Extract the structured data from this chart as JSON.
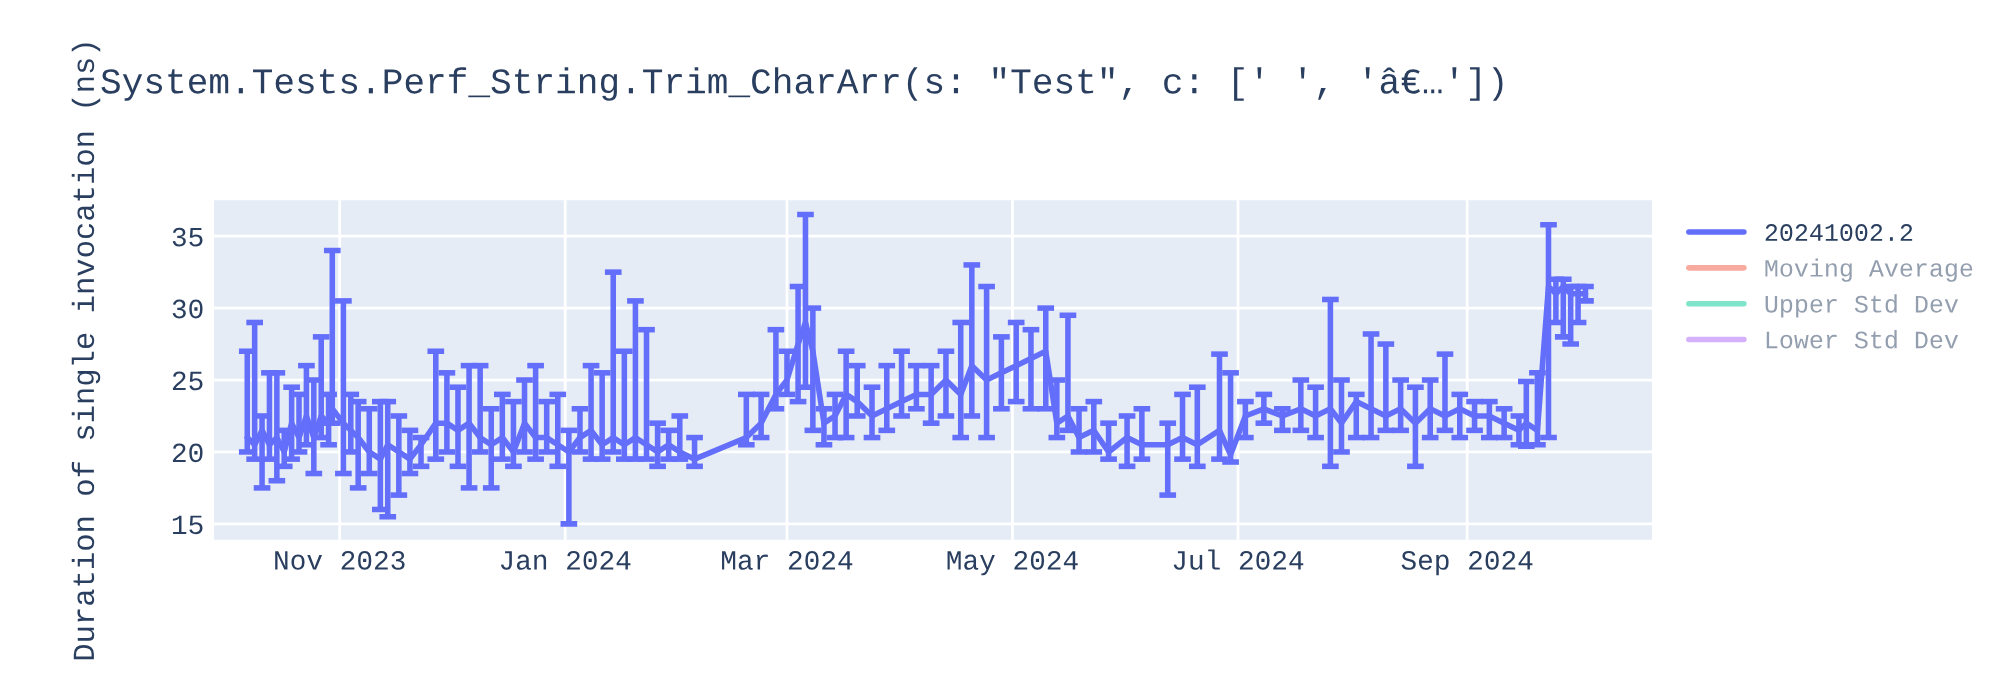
{
  "chart_data": {
    "type": "line",
    "title": "System.Tests.Perf_String.Trim_CharArr(s: \"Test\", c: [' ', 'â€…'])",
    "ylabel": "Duration of single invocation (ns)",
    "xlim": [
      "2023-09-28",
      "2024-10-21"
    ],
    "xticks": [
      {
        "value": "2023-11-01",
        "label": "Nov 2023"
      },
      {
        "value": "2024-01-01",
        "label": "Jan 2024"
      },
      {
        "value": "2024-03-01",
        "label": "Mar 2024"
      },
      {
        "value": "2024-05-01",
        "label": "May 2024"
      },
      {
        "value": "2024-07-01",
        "label": "Jul 2024"
      },
      {
        "value": "2024-09-01",
        "label": "Sep 2024"
      }
    ],
    "ylim": [
      13.9,
      37.5
    ],
    "yticks": [
      15,
      20,
      25,
      30,
      35
    ],
    "grid": true,
    "legend": "right",
    "marker": "none",
    "line_style": "solid",
    "x": [
      "2023-10-07",
      "2023-10-09",
      "2023-10-11",
      "2023-10-13",
      "2023-10-15",
      "2023-10-17",
      "2023-10-19",
      "2023-10-21",
      "2023-10-23",
      "2023-10-25",
      "2023-10-27",
      "2023-10-29",
      "2023-10-30",
      "2023-11-02",
      "2023-11-04",
      "2023-11-06",
      "2023-11-09",
      "2023-11-12",
      "2023-11-14",
      "2023-11-17",
      "2023-11-20",
      "2023-11-23",
      "2023-11-27",
      "2023-11-30",
      "2023-12-03",
      "2023-12-06",
      "2023-12-09",
      "2023-12-12",
      "2023-12-15",
      "2023-12-18",
      "2023-12-21",
      "2023-12-24",
      "2023-12-27",
      "2023-12-30",
      "2024-01-02",
      "2024-01-05",
      "2024-01-08",
      "2024-01-11",
      "2024-01-14",
      "2024-01-17",
      "2024-01-20",
      "2024-01-23",
      "2024-01-26",
      "2024-01-29",
      "2024-02-01",
      "2024-02-05",
      "2024-02-19",
      "2024-02-23",
      "2024-02-27",
      "2024-03-01",
      "2024-03-04",
      "2024-03-06",
      "2024-03-08",
      "2024-03-11",
      "2024-03-14",
      "2024-03-17",
      "2024-03-20",
      "2024-03-24",
      "2024-03-28",
      "2024-04-01",
      "2024-04-05",
      "2024-04-09",
      "2024-04-13",
      "2024-04-17",
      "2024-04-20",
      "2024-04-24",
      "2024-04-28",
      "2024-05-02",
      "2024-05-06",
      "2024-05-10",
      "2024-05-13",
      "2024-05-16",
      "2024-05-19",
      "2024-05-23",
      "2024-05-27",
      "2024-06-01",
      "2024-06-05",
      "2024-06-12",
      "2024-06-16",
      "2024-06-20",
      "2024-06-26",
      "2024-06-29",
      "2024-07-03",
      "2024-07-08",
      "2024-07-13",
      "2024-07-18",
      "2024-07-22",
      "2024-07-26",
      "2024-07-29",
      "2024-08-02",
      "2024-08-06",
      "2024-08-10",
      "2024-08-14",
      "2024-08-18",
      "2024-08-22",
      "2024-08-26",
      "2024-08-30",
      "2024-09-03",
      "2024-09-07",
      "2024-09-11",
      "2024-09-15",
      "2024-09-17",
      "2024-09-20",
      "2024-09-23",
      "2024-09-25",
      "2024-09-27",
      "2024-09-29",
      "2024-10-01",
      "2024-10-03"
    ],
    "series": [
      {
        "name": "20241002.2",
        "color": "#636efa",
        "values": [
          21,
          20.5,
          21.5,
          20.5,
          21,
          20,
          22,
          21,
          22.5,
          21,
          22.5,
          22,
          23,
          22,
          21.5,
          21,
          20,
          19.5,
          20.5,
          20,
          19.5,
          20.5,
          22,
          22,
          21.5,
          22,
          21,
          20.5,
          21,
          20,
          22,
          21,
          21,
          20.5,
          20,
          21,
          21.5,
          20.5,
          21,
          20.5,
          21,
          20.5,
          20,
          20.5,
          20,
          19.5,
          21,
          22,
          24,
          25,
          27.5,
          29,
          27,
          22,
          22.5,
          24,
          23.5,
          22.5,
          23,
          23.5,
          24,
          24,
          25,
          24,
          26,
          25,
          25.5,
          26,
          26.5,
          27,
          22,
          22.5,
          21,
          21.5,
          20,
          21,
          20.5,
          20.5,
          21,
          20.5,
          21.5,
          19.8,
          22.5,
          23,
          22.5,
          23,
          22.5,
          23,
          22,
          23.5,
          23,
          22.5,
          23,
          22,
          23,
          22.5,
          23,
          22.5,
          22.5,
          22,
          21.5,
          22,
          21.5,
          31.5,
          31,
          31.5,
          31,
          31,
          31
        ],
        "errors": [
          [
            20,
            27
          ],
          [
            19.5,
            29
          ],
          [
            17.5,
            22.5
          ],
          [
            19.5,
            25.5
          ],
          [
            18,
            25.5
          ],
          [
            19,
            21.5
          ],
          [
            19.5,
            24.5
          ],
          [
            20,
            24
          ],
          [
            20.5,
            26
          ],
          [
            18.5,
            25
          ],
          [
            21,
            28
          ],
          [
            20.5,
            24
          ],
          [
            22,
            34
          ],
          [
            18.5,
            30.5
          ],
          [
            20,
            24
          ],
          [
            17.5,
            23.5
          ],
          [
            18.5,
            23
          ],
          [
            16,
            23.5
          ],
          [
            15.5,
            23.5
          ],
          [
            17,
            22.5
          ],
          [
            18.5,
            21.5
          ],
          [
            19,
            21
          ],
          [
            19.5,
            27
          ],
          [
            20,
            25.5
          ],
          [
            19,
            24.5
          ],
          [
            17.5,
            26
          ],
          [
            20,
            26
          ],
          [
            17.5,
            23
          ],
          [
            19.5,
            24
          ],
          [
            19,
            23.5
          ],
          [
            20,
            25
          ],
          [
            19.5,
            26
          ],
          [
            20,
            23.5
          ],
          [
            19,
            24
          ],
          [
            15,
            21.5
          ],
          [
            20,
            23
          ],
          [
            19.5,
            26
          ],
          [
            19.5,
            25.5
          ],
          [
            20,
            32.5
          ],
          [
            19.5,
            27
          ],
          [
            19.5,
            30.5
          ],
          [
            19.5,
            28.5
          ],
          [
            19,
            22
          ],
          [
            19.5,
            21.5
          ],
          [
            19.5,
            22.5
          ],
          [
            19,
            21
          ],
          [
            20.5,
            24
          ],
          [
            21,
            24
          ],
          [
            23,
            28.5
          ],
          [
            24,
            27
          ],
          [
            23.5,
            31.5
          ],
          [
            24.5,
            36.5
          ],
          [
            21.5,
            30
          ],
          [
            20.5,
            23
          ],
          [
            21,
            24
          ],
          [
            21,
            27
          ],
          [
            22.5,
            26
          ],
          [
            21,
            24.5
          ],
          [
            21.5,
            26
          ],
          [
            22.5,
            27
          ],
          [
            23,
            26
          ],
          [
            22,
            26
          ],
          [
            22.5,
            27
          ],
          [
            21,
            29
          ],
          [
            22.5,
            33
          ],
          [
            21,
            31.5
          ],
          [
            23,
            28
          ],
          [
            23.5,
            29
          ],
          [
            23,
            28.5
          ],
          [
            23,
            30
          ],
          [
            21,
            25
          ],
          [
            21.5,
            29.5
          ],
          [
            20,
            23
          ],
          [
            20,
            23.5
          ],
          [
            19.5,
            22
          ],
          [
            19,
            22.5
          ],
          [
            19.5,
            23
          ],
          [
            17,
            22
          ],
          [
            19.5,
            24
          ],
          [
            19,
            24.5
          ],
          [
            19.5,
            26.8
          ],
          [
            19.3,
            25.5
          ],
          [
            21,
            23.5
          ],
          [
            22,
            24
          ],
          [
            21.5,
            23
          ],
          [
            21.5,
            25
          ],
          [
            21,
            24.5
          ],
          [
            19,
            30.6
          ],
          [
            20,
            25
          ],
          [
            21,
            24
          ],
          [
            21,
            28.2
          ],
          [
            21.5,
            27.5
          ],
          [
            21.5,
            25
          ],
          [
            19,
            24.5
          ],
          [
            21,
            25
          ],
          [
            21.5,
            26.8
          ],
          [
            21,
            24
          ],
          [
            21.5,
            23.5
          ],
          [
            21,
            23.5
          ],
          [
            21,
            23
          ],
          [
            20.5,
            22.5
          ],
          [
            20.4,
            24.9
          ],
          [
            20.5,
            25.5
          ],
          [
            21,
            35.8
          ],
          [
            29,
            32
          ],
          [
            28,
            32
          ],
          [
            27.5,
            31.5
          ],
          [
            29,
            31.5
          ],
          [
            30.5,
            31.5
          ]
        ]
      },
      {
        "name": "Moving Average",
        "color": "#ef553b",
        "values": [
          null,
          null,
          null,
          null,
          null,
          null,
          null,
          null,
          null,
          null,
          null,
          null,
          null,
          null,
          null,
          null,
          null,
          null,
          null,
          null,
          null,
          null,
          null,
          null,
          null,
          null,
          null,
          null,
          null,
          null,
          null,
          null,
          null,
          null,
          null,
          null,
          null,
          null,
          null,
          null,
          null,
          null,
          null,
          null,
          null,
          null,
          null,
          null,
          null,
          null,
          null,
          null,
          null,
          null,
          null,
          null,
          null,
          null,
          null,
          null,
          null,
          null,
          null,
          null,
          null,
          null,
          null,
          null,
          null,
          null,
          null,
          null,
          null,
          null,
          null,
          null,
          null,
          null,
          null,
          null,
          null,
          null,
          null,
          null,
          null,
          null,
          null,
          null,
          null,
          null,
          null,
          null,
          null,
          null,
          null,
          null,
          null,
          null,
          null,
          null,
          null,
          null,
          null,
          null,
          null,
          null,
          null,
          null,
          null
        ]
      },
      {
        "name": "Upper Std Dev",
        "color": "#00cc96",
        "values": [
          null,
          null,
          null,
          null,
          null,
          null,
          null,
          null,
          null,
          null,
          null,
          null,
          null,
          null,
          null,
          null,
          null,
          null,
          null,
          null,
          null,
          null,
          null,
          null,
          null,
          null,
          null,
          null,
          null,
          null,
          null,
          null,
          null,
          null,
          null,
          null,
          null,
          null,
          null,
          null,
          null,
          null,
          null,
          null,
          null,
          null,
          null,
          null,
          null,
          null,
          null,
          null,
          null,
          null,
          null,
          null,
          null,
          null,
          null,
          null,
          null,
          null,
          null,
          null,
          null,
          null,
          null,
          null,
          null,
          null,
          null,
          null,
          null,
          null,
          null,
          null,
          null,
          null,
          null,
          null,
          null,
          null,
          null,
          null,
          null,
          null,
          null,
          null,
          null,
          null,
          null,
          null,
          null,
          null,
          null,
          null,
          null,
          null,
          null,
          null,
          null,
          null,
          null,
          null,
          null,
          null,
          null,
          null,
          null
        ]
      },
      {
        "name": "Lower Std Dev",
        "color": "#ab63fa",
        "values": [
          null,
          null,
          null,
          null,
          null,
          null,
          null,
          null,
          null,
          null,
          null,
          null,
          null,
          null,
          null,
          null,
          null,
          null,
          null,
          null,
          null,
          null,
          null,
          null,
          null,
          null,
          null,
          null,
          null,
          null,
          null,
          null,
          null,
          null,
          null,
          null,
          null,
          null,
          null,
          null,
          null,
          null,
          null,
          null,
          null,
          null,
          null,
          null,
          null,
          null,
          null,
          null,
          null,
          null,
          null,
          null,
          null,
          null,
          null,
          null,
          null,
          null,
          null,
          null,
          null,
          null,
          null,
          null,
          null,
          null,
          null,
          null,
          null,
          null,
          null,
          null,
          null,
          null,
          null,
          null,
          null,
          null,
          null,
          null,
          null,
          null,
          null,
          null,
          null,
          null,
          null,
          null,
          null,
          null,
          null,
          null,
          null,
          null,
          null,
          null,
          null,
          null,
          null,
          null,
          null,
          null,
          null,
          null,
          null
        ]
      }
    ]
  }
}
